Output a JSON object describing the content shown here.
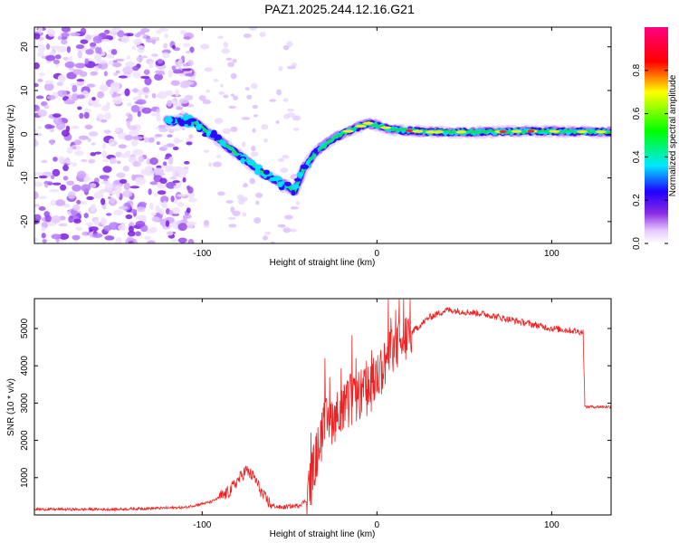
{
  "title": "PAZ1.2025.244.12.16.G21",
  "chart_data": [
    {
      "type": "heatmap",
      "title": "PAZ1.2025.244.12.16.G21",
      "xlabel": "Height of straight line (km)",
      "ylabel": "Frequency (Hz)",
      "xlim": [
        -196,
        134
      ],
      "ylim": [
        -25,
        24.5
      ],
      "x_ticks": [
        -100,
        0,
        100
      ],
      "x_tick_labels": [
        "-100",
        "0",
        "100"
      ],
      "y_ticks": [
        -20,
        -10,
        0,
        10,
        20
      ],
      "y_tick_labels": [
        "-20",
        "-10",
        "0",
        "10",
        "20"
      ],
      "colorbar": {
        "label": "Normalized spectral amplitude",
        "range": [
          0,
          1
        ],
        "ticks": [
          0.0,
          0.2,
          0.4,
          0.6,
          0.8
        ],
        "tick_labels": [
          "0.0",
          "0.2",
          "0.4",
          "0.6",
          "0.8"
        ],
        "colors": [
          "#ffffff",
          "#e6c8ff",
          "#8a2be2",
          "#2000ff",
          "#00e8ff",
          "#00ff00",
          "#ffff00",
          "#ff0000",
          "#ff0080"
        ]
      },
      "ridge": {
        "description": "dominant frequency track vs height",
        "x": [
          -120,
          -105,
          -95,
          -85,
          -75,
          -65,
          -55,
          -47,
          -42,
          -35,
          -25,
          -15,
          -5,
          0,
          10,
          30,
          60,
          90,
          110,
          134
        ],
        "y": [
          3,
          3,
          0,
          -3,
          -6,
          -9,
          -11,
          -13,
          -8,
          -4,
          -1,
          1,
          2.5,
          2,
          1,
          0.5,
          0.5,
          0.7,
          0.6,
          0.5
        ]
      },
      "noise_region_x": [
        -196,
        -105
      ]
    },
    {
      "type": "line",
      "xlabel": "Height of straight line (km)",
      "ylabel": "SNR (10 * v/v)",
      "xlim": [
        -196,
        134
      ],
      "ylim": [
        0,
        5800
      ],
      "x_ticks": [
        -100,
        0,
        100
      ],
      "x_tick_labels": [
        "-100",
        "0",
        "100"
      ],
      "y_ticks": [
        1000,
        2000,
        3000,
        4000,
        5000
      ],
      "y_tick_labels": [
        "1000",
        "2000",
        "3000",
        "4000",
        "5000"
      ],
      "series": [
        {
          "name": "SNR",
          "color": "#ee2222",
          "x": [
            -196,
            -150,
            -110,
            -95,
            -85,
            -80,
            -75,
            -70,
            -65,
            -60,
            -55,
            -45,
            -40,
            -35,
            -30,
            -25,
            -20,
            -15,
            -10,
            -5,
            0,
            5,
            10,
            20,
            30,
            40,
            50,
            60,
            70,
            80,
            90,
            100,
            110,
            118,
            119,
            120,
            134
          ],
          "y": [
            150,
            150,
            200,
            350,
            600,
            900,
            1200,
            1000,
            500,
            250,
            200,
            250,
            400,
            1500,
            2400,
            2600,
            2800,
            3000,
            3200,
            3300,
            3700,
            4100,
            4500,
            4900,
            5300,
            5500,
            5450,
            5400,
            5300,
            5200,
            5100,
            5000,
            4950,
            4900,
            2900,
            2900,
            2900
          ]
        }
      ]
    }
  ]
}
